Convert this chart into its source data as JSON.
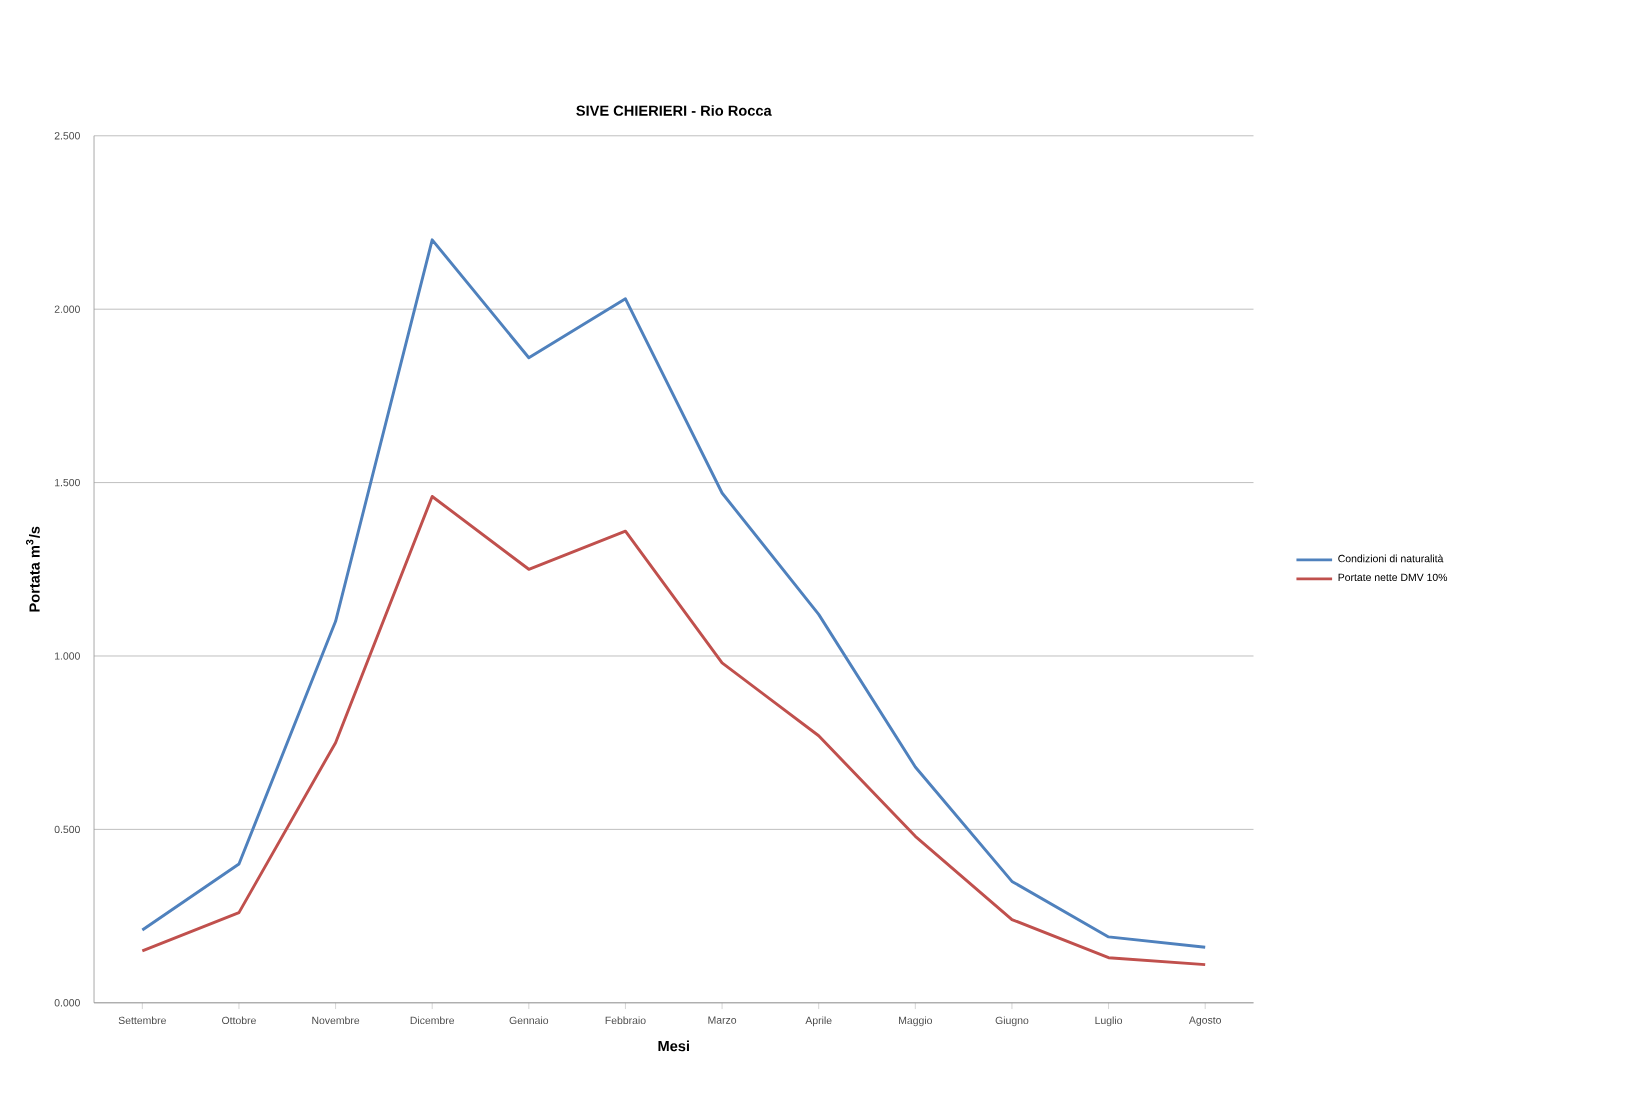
{
  "chart_data": {
    "type": "line",
    "title": "SIVE CHIERIERI - Rio Rocca",
    "xlabel": "Mesi",
    "ylabel": "Portata m$^{3}$/s",
    "categories": [
      "Settembre",
      "Ottobre",
      "Novembre",
      "Dicembre",
      "Gennaio",
      "Febbraio",
      "Marzo",
      "Aprile",
      "Maggio",
      "Giugno",
      "Luglio",
      "Agosto"
    ],
    "series": [
      {
        "name": "Condizioni di naturalità",
        "color": "#4f81bd",
        "values": [
          0.21,
          0.4,
          1.1,
          2.2,
          1.86,
          2.03,
          1.47,
          1.12,
          0.68,
          0.35,
          0.19,
          0.16
        ]
      },
      {
        "name": "Portate nette DMV 10%",
        "color": "#c0504d",
        "values": [
          0.15,
          0.26,
          0.75,
          1.46,
          1.25,
          1.36,
          0.98,
          0.77,
          0.48,
          0.24,
          0.13,
          0.11
        ]
      }
    ],
    "ylim": [
      0,
      2.5
    ],
    "yticks": [
      {
        "value": 0,
        "label": "0.000"
      },
      {
        "value": 0.5,
        "label": "0.500"
      },
      {
        "value": 1,
        "label": "1.000"
      },
      {
        "value": 1.5,
        "label": "1.500"
      },
      {
        "value": 2,
        "label": "2.000"
      },
      {
        "value": 2.5,
        "label": "2.500"
      }
    ],
    "grid": "y",
    "legend": "right",
    "marker": "none",
    "line_style": "solid"
  }
}
